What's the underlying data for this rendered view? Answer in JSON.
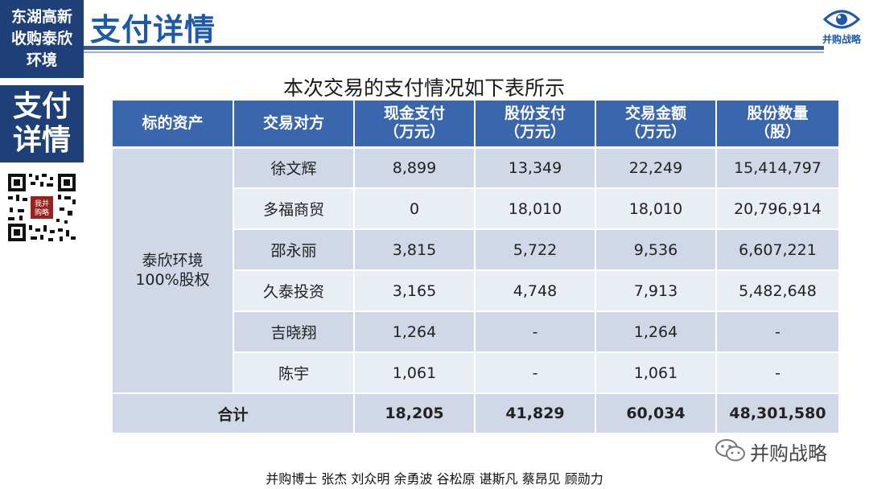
{
  "top_label": [
    "东湖高新",
    "收购泰欣",
    "环境"
  ],
  "header": {
    "title": "支付详情"
  },
  "logo": {
    "text": "并购战略",
    "icon": "eye-logo-icon",
    "color": "#1e5aa8"
  },
  "side_label": [
    "支付",
    "详情"
  ],
  "qr": {
    "icon": "qr-code-icon",
    "stamp": [
      "我并",
      "购略"
    ]
  },
  "caption": "本次交易的支付情况如下表所示",
  "table": {
    "headers": [
      [
        "标的资产"
      ],
      [
        "交易对方"
      ],
      [
        "现金支付",
        "（万元）"
      ],
      [
        "股份支付",
        "（万元）"
      ],
      [
        "交易金额",
        "（万元）"
      ],
      [
        "股份数量",
        "（股）"
      ]
    ],
    "asset": [
      "泰欣环境",
      "100%股权"
    ],
    "rows": [
      {
        "party": "徐文辉",
        "cash": "8,899",
        "share": "13,349",
        "amount": "22,249",
        "shares": "15,414,797"
      },
      {
        "party": "多福商贸",
        "cash": "0",
        "share": "18,010",
        "amount": "18,010",
        "shares": "20,796,914"
      },
      {
        "party": "邵永丽",
        "cash": "3,815",
        "share": "5,722",
        "amount": "9,536",
        "shares": "6,607,221"
      },
      {
        "party": "久泰投资",
        "cash": "3,165",
        "share": "4,748",
        "amount": "7,913",
        "shares": "5,482,648"
      },
      {
        "party": "吉晓翔",
        "cash": "1,264",
        "share": "-",
        "amount": "1,264",
        "shares": "-"
      },
      {
        "party": "陈宇",
        "cash": "1,061",
        "share": "-",
        "amount": "1,061",
        "shares": "-"
      }
    ],
    "total": {
      "label": "合计",
      "cash": "18,205",
      "share": "41,829",
      "amount": "60,034",
      "shares": "48,301,580"
    }
  },
  "watermark": {
    "icon": "wechat-icon",
    "text": "并购战略"
  },
  "footer": "并购博士 张杰 刘众明 余勇波 谷松原 谌斯凡 蔡昂见 顾勋力",
  "colors": {
    "navy": "#1e3f77",
    "header_blue": "#3a66ad",
    "title_blue": "#1e5aa8",
    "row_dark": "#d0d8e8",
    "row_light": "#e9edf4"
  }
}
